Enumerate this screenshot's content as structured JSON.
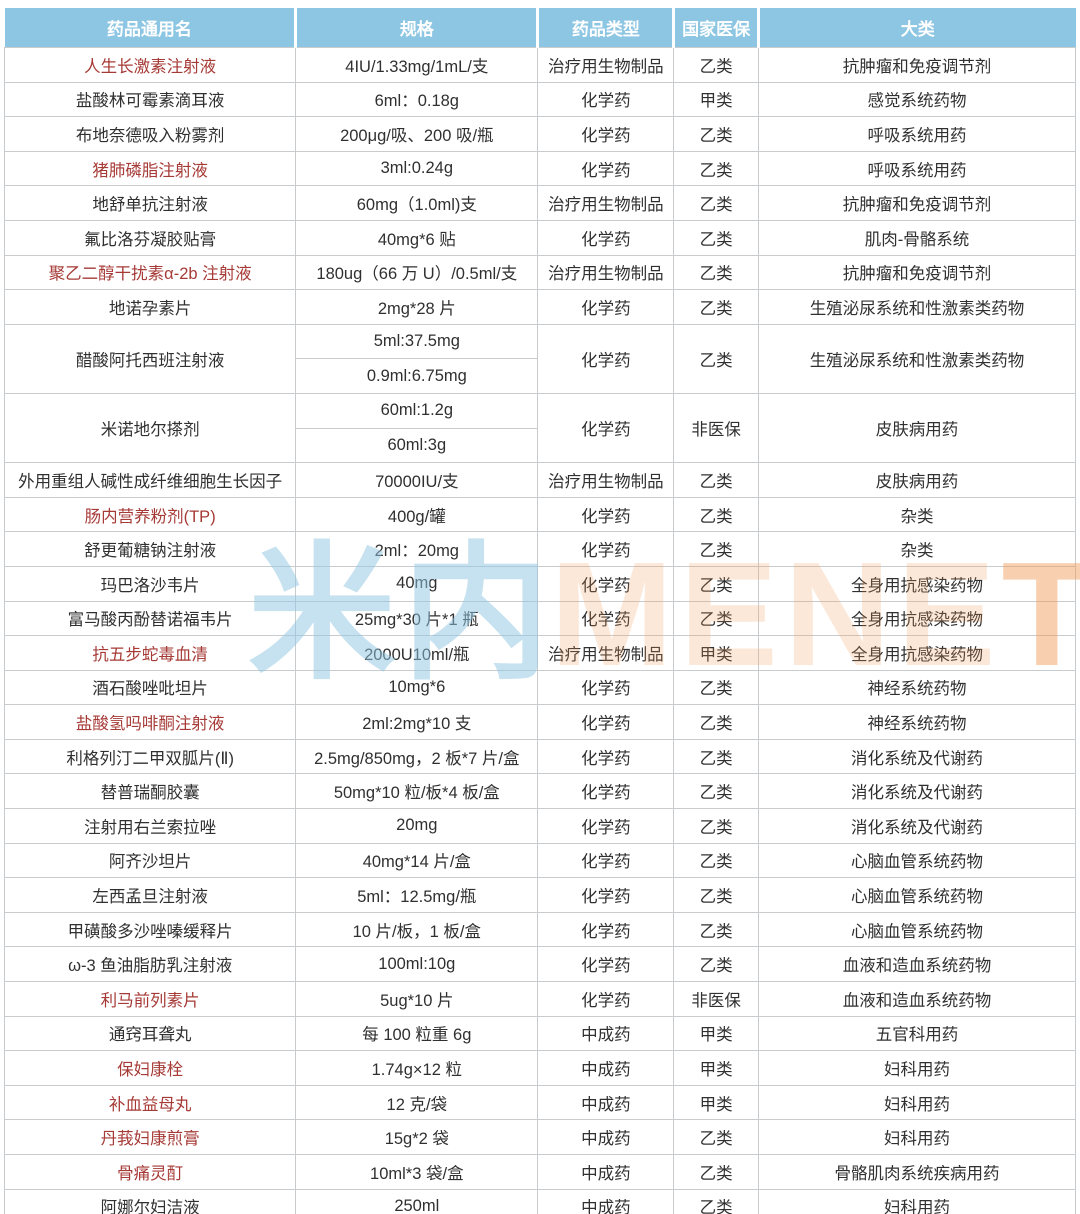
{
  "table": {
    "columns": [
      "药品通用名",
      "规格",
      "药品类型",
      "国家医保",
      "大类"
    ],
    "rows": [
      {
        "name": "人生长激素注射液",
        "red": true,
        "specs": [
          "4IU/1.33mg/1mL/支"
        ],
        "type": "治疗用生物制品",
        "insurance": "乙类",
        "category": "抗肿瘤和免疫调节剂"
      },
      {
        "name": "盐酸林可霉素滴耳液",
        "red": false,
        "specs": [
          "6ml：0.18g"
        ],
        "type": "化学药",
        "insurance": "甲类",
        "category": "感觉系统药物"
      },
      {
        "name": "布地奈德吸入粉雾剂",
        "red": false,
        "specs": [
          "200μg/吸、200 吸/瓶"
        ],
        "type": "化学药",
        "insurance": "乙类",
        "category": "呼吸系统用药"
      },
      {
        "name": "猪肺磷脂注射液",
        "red": true,
        "specs": [
          "3ml:0.24g"
        ],
        "type": "化学药",
        "insurance": "乙类",
        "category": "呼吸系统用药"
      },
      {
        "name": "地舒单抗注射液",
        "red": false,
        "specs": [
          "60mg（1.0ml)支"
        ],
        "type": "治疗用生物制品",
        "insurance": "乙类",
        "category": "抗肿瘤和免疫调节剂"
      },
      {
        "name": "氟比洛芬凝胶贴膏",
        "red": false,
        "specs": [
          "40mg*6 贴"
        ],
        "type": "化学药",
        "insurance": "乙类",
        "category": "肌肉-骨骼系统"
      },
      {
        "name": "聚乙二醇干扰素α-2b 注射液",
        "red": true,
        "specs": [
          "180ug（66 万 U）/0.5ml/支"
        ],
        "type": "治疗用生物制品",
        "insurance": "乙类",
        "category": "抗肿瘤和免疫调节剂"
      },
      {
        "name": "地诺孕素片",
        "red": false,
        "specs": [
          "2mg*28 片"
        ],
        "type": "化学药",
        "insurance": "乙类",
        "category": "生殖泌尿系统和性激素类药物"
      },
      {
        "name": "醋酸阿托西班注射液",
        "red": false,
        "specs": [
          "5ml:37.5mg",
          "0.9ml:6.75mg"
        ],
        "type": "化学药",
        "insurance": "乙类",
        "category": "生殖泌尿系统和性激素类药物"
      },
      {
        "name": "米诺地尔搽剂",
        "red": false,
        "specs": [
          "60ml:1.2g",
          "60ml:3g"
        ],
        "type": "化学药",
        "insurance": "非医保",
        "category": "皮肤病用药"
      },
      {
        "name": "外用重组人碱性成纤维细胞生长因子",
        "red": false,
        "specs": [
          "70000IU/支"
        ],
        "type": "治疗用生物制品",
        "insurance": "乙类",
        "category": "皮肤病用药"
      },
      {
        "name": "肠内营养粉剂(TP)",
        "red": true,
        "specs": [
          "400g/罐"
        ],
        "type": "化学药",
        "insurance": "乙类",
        "category": "杂类"
      },
      {
        "name": "舒更葡糖钠注射液",
        "red": false,
        "specs": [
          "2ml：20mg"
        ],
        "type": "化学药",
        "insurance": "乙类",
        "category": "杂类"
      },
      {
        "name": "玛巴洛沙韦片",
        "red": false,
        "specs": [
          "40mg"
        ],
        "type": "化学药",
        "insurance": "乙类",
        "category": "全身用抗感染药物"
      },
      {
        "name": "富马酸丙酚替诺福韦片",
        "red": false,
        "specs": [
          "25mg*30 片*1 瓶"
        ],
        "type": "化学药",
        "insurance": "乙类",
        "category": "全身用抗感染药物"
      },
      {
        "name": "抗五步蛇毒血清",
        "red": true,
        "specs": [
          "2000U10ml/瓶"
        ],
        "type": "治疗用生物制品",
        "insurance": "甲类",
        "category": "全身用抗感染药物"
      },
      {
        "name": "酒石酸唑吡坦片",
        "red": false,
        "specs": [
          "10mg*6"
        ],
        "type": "化学药",
        "insurance": "乙类",
        "category": "神经系统药物"
      },
      {
        "name": "盐酸氢吗啡酮注射液",
        "red": true,
        "specs": [
          "2ml:2mg*10 支"
        ],
        "type": "化学药",
        "insurance": "乙类",
        "category": "神经系统药物"
      },
      {
        "name": "利格列汀二甲双胍片(Ⅱ)",
        "red": false,
        "specs": [
          "2.5mg/850mg，2 板*7 片/盒"
        ],
        "type": "化学药",
        "insurance": "乙类",
        "category": "消化系统及代谢药"
      },
      {
        "name": "替普瑞酮胶囊",
        "red": false,
        "specs": [
          "50mg*10 粒/板*4 板/盒"
        ],
        "type": "化学药",
        "insurance": "乙类",
        "category": "消化系统及代谢药"
      },
      {
        "name": "注射用右兰索拉唑",
        "red": false,
        "specs": [
          "20mg"
        ],
        "type": "化学药",
        "insurance": "乙类",
        "category": "消化系统及代谢药"
      },
      {
        "name": "阿齐沙坦片",
        "red": false,
        "specs": [
          "40mg*14 片/盒"
        ],
        "type": "化学药",
        "insurance": "乙类",
        "category": "心脑血管系统药物"
      },
      {
        "name": "左西孟旦注射液",
        "red": false,
        "specs": [
          "5ml：12.5mg/瓶"
        ],
        "type": "化学药",
        "insurance": "乙类",
        "category": "心脑血管系统药物"
      },
      {
        "name": "甲磺酸多沙唑嗪缓释片",
        "red": false,
        "specs": [
          "10 片/板，1 板/盒"
        ],
        "type": "化学药",
        "insurance": "乙类",
        "category": "心脑血管系统药物"
      },
      {
        "name": "ω-3 鱼油脂肪乳注射液",
        "red": false,
        "specs": [
          "100ml:10g"
        ],
        "type": "化学药",
        "insurance": "乙类",
        "category": "血液和造血系统药物"
      },
      {
        "name": "利马前列素片",
        "red": true,
        "specs": [
          "5ug*10 片"
        ],
        "type": "化学药",
        "insurance": "非医保",
        "category": "血液和造血系统药物"
      },
      {
        "name": "通窍耳聋丸",
        "red": false,
        "specs": [
          "每 100 粒重 6g"
        ],
        "type": "中成药",
        "insurance": "甲类",
        "category": "五官科用药"
      },
      {
        "name": "保妇康栓",
        "red": true,
        "specs": [
          "1.74g×12 粒"
        ],
        "type": "中成药",
        "insurance": "甲类",
        "category": "妇科用药"
      },
      {
        "name": "补血益母丸",
        "red": true,
        "specs": [
          "12 克/袋"
        ],
        "type": "中成药",
        "insurance": "甲类",
        "category": "妇科用药"
      },
      {
        "name": "丹莪妇康煎膏",
        "red": true,
        "specs": [
          "15g*2 袋"
        ],
        "type": "中成药",
        "insurance": "乙类",
        "category": "妇科用药"
      },
      {
        "name": "骨痛灵酊",
        "red": true,
        "specs": [
          "10ml*3 袋/盒"
        ],
        "type": "中成药",
        "insurance": "乙类",
        "category": "骨骼肌肉系统疾病用药"
      },
      {
        "name": "阿娜尔妇洁液",
        "red": false,
        "specs": [
          "250ml"
        ],
        "type": "中成药",
        "insurance": "乙类",
        "category": "妇科用药"
      }
    ]
  },
  "watermark": {
    "cn": "米内",
    "en": "MENE",
    "en_tail": "T"
  },
  "colors": {
    "header_bg": "#8dc6e2",
    "header_text": "#ffffff",
    "red_text": "#a63a36",
    "body_text": "#303030",
    "border": "#c9ccce",
    "watermark_blue": "#8dc6e2",
    "watermark_orange": "#f09650"
  }
}
